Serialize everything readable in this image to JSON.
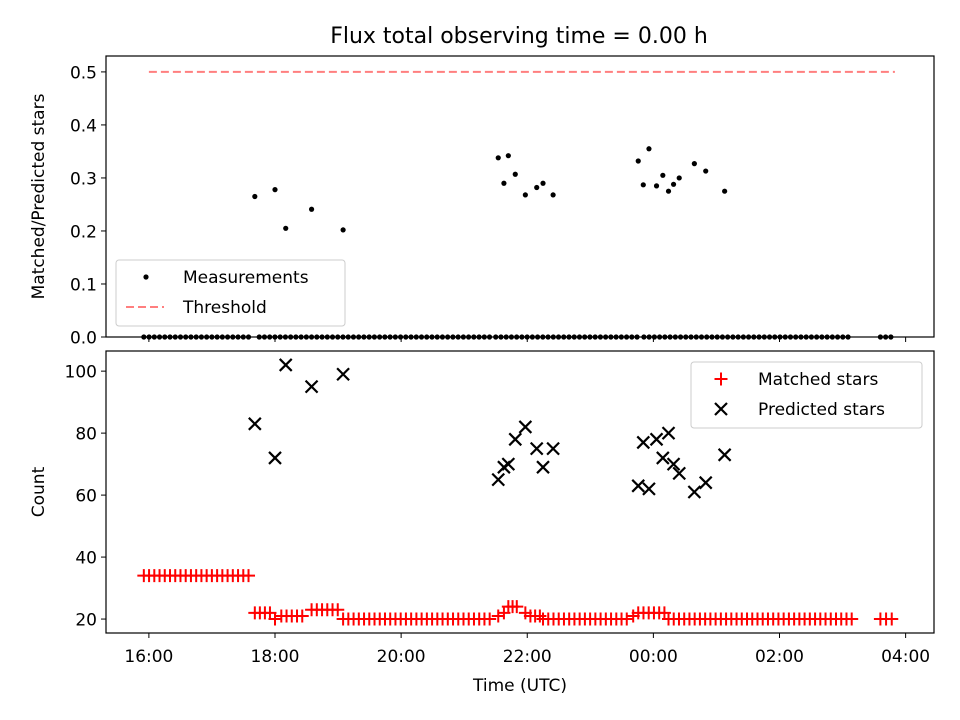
{
  "title": "Flux total observing time = 0.00 h",
  "colors": {
    "measurements": "#000000",
    "threshold": "#ff7f7f",
    "matched": "#ff0000",
    "predicted": "#000000",
    "axis": "#000000"
  },
  "chart_data": [
    {
      "type": "scatter",
      "panel": "top",
      "ylabel": "Matched/Predicted stars",
      "xlabel": "",
      "x_unit": "hours since 16:00 UTC",
      "xlim": [
        -0.68,
        12.45
      ],
      "ylim": [
        0.0,
        0.53
      ],
      "yticks": [
        0.0,
        0.1,
        0.2,
        0.3,
        0.4,
        0.5
      ],
      "ytick_labels": [
        "0.0",
        "0.1",
        "0.2",
        "0.3",
        "0.4",
        "0.5"
      ],
      "xticks": [
        0,
        2,
        4,
        6,
        8,
        10,
        12
      ],
      "xtick_labels": [
        "",
        "",
        "",
        "",
        "",
        "",
        ""
      ],
      "legend": {
        "position": "lower-left",
        "entries": [
          "Measurements",
          "Threshold"
        ]
      },
      "threshold": {
        "name": "Threshold",
        "x": [
          0,
          11.83
        ],
        "y": 0.5
      },
      "series": [
        {
          "name": "Measurements",
          "marker": "dot",
          "points": [
            [
              1.68,
              0.265
            ],
            [
              2.0,
              0.278
            ],
            [
              2.17,
              0.205
            ],
            [
              2.58,
              0.241
            ],
            [
              3.08,
              0.202
            ],
            [
              5.54,
              0.338
            ],
            [
              5.63,
              0.29
            ],
            [
              5.7,
              0.342
            ],
            [
              5.81,
              0.307
            ],
            [
              5.97,
              0.268
            ],
            [
              6.15,
              0.282
            ],
            [
              6.25,
              0.29
            ],
            [
              6.41,
              0.268
            ],
            [
              7.76,
              0.332
            ],
            [
              7.84,
              0.287
            ],
            [
              7.93,
              0.355
            ],
            [
              8.05,
              0.285
            ],
            [
              8.15,
              0.305
            ],
            [
              8.24,
              0.275
            ],
            [
              8.32,
              0.288
            ],
            [
              8.41,
              0.3
            ],
            [
              8.65,
              0.327
            ],
            [
              8.83,
              0.313
            ],
            [
              9.13,
              0.275
            ]
          ],
          "zero_ranges": [
            [
              -0.08,
              1.6,
              0.083
            ],
            [
              1.75,
              5.45,
              0.083
            ],
            [
              5.5,
              7.8,
              0.083
            ],
            [
              7.85,
              11.15,
              0.083
            ],
            [
              11.6,
              11.78,
              0.083
            ]
          ]
        }
      ]
    },
    {
      "type": "scatter",
      "panel": "bottom",
      "ylabel": "Count",
      "xlabel": "Time (UTC)",
      "x_unit": "hours since 16:00 UTC",
      "xlim": [
        -0.68,
        12.45
      ],
      "ylim": [
        15.5,
        106.5
      ],
      "yticks": [
        20,
        40,
        60,
        80,
        100
      ],
      "ytick_labels": [
        "20",
        "40",
        "60",
        "80",
        "100"
      ],
      "xticks": [
        0,
        2,
        4,
        6,
        8,
        10,
        12
      ],
      "xtick_labels": [
        "16:00",
        "18:00",
        "20:00",
        "22:00",
        "00:00",
        "02:00",
        "04:00"
      ],
      "legend": {
        "position": "top-right",
        "entries": [
          "Matched stars",
          "Predicted stars"
        ]
      },
      "series": [
        {
          "name": "Matched stars",
          "marker": "plus",
          "points": [],
          "runs": [
            [
              -0.08,
              1.6,
              0.083,
              34
            ],
            [
              1.68,
              1.92,
              0.08,
              22
            ],
            [
              2.0,
              2.0,
              0.1,
              20
            ],
            [
              2.1,
              2.5,
              0.083,
              21
            ],
            [
              2.58,
              3.0,
              0.083,
              23
            ],
            [
              3.08,
              5.45,
              0.083,
              20
            ],
            [
              5.54,
              5.54,
              0.1,
              21
            ],
            [
              5.63,
              5.63,
              0.1,
              22
            ],
            [
              5.7,
              5.9,
              0.067,
              24
            ],
            [
              5.97,
              5.97,
              0.1,
              22
            ],
            [
              6.05,
              6.2,
              0.075,
              21
            ],
            [
              6.25,
              7.6,
              0.083,
              20
            ],
            [
              7.68,
              7.68,
              0.1,
              21
            ],
            [
              7.76,
              8.2,
              0.083,
              22
            ],
            [
              8.24,
              11.15,
              0.083,
              20
            ],
            [
              11.6,
              11.78,
              0.09,
              20
            ]
          ]
        },
        {
          "name": "Predicted stars",
          "marker": "x",
          "points": [
            [
              1.68,
              83
            ],
            [
              2.0,
              72
            ],
            [
              2.17,
              102
            ],
            [
              2.58,
              95
            ],
            [
              3.08,
              99
            ],
            [
              5.54,
              65
            ],
            [
              5.63,
              69
            ],
            [
              5.7,
              70
            ],
            [
              5.81,
              78
            ],
            [
              5.97,
              82
            ],
            [
              6.15,
              75
            ],
            [
              6.25,
              69
            ],
            [
              6.41,
              75
            ],
            [
              7.76,
              63
            ],
            [
              7.84,
              77
            ],
            [
              7.93,
              62
            ],
            [
              8.05,
              78
            ],
            [
              8.15,
              72
            ],
            [
              8.24,
              80
            ],
            [
              8.32,
              70
            ],
            [
              8.41,
              67
            ],
            [
              8.65,
              61
            ],
            [
              8.83,
              64
            ],
            [
              9.13,
              73
            ]
          ]
        }
      ]
    }
  ]
}
